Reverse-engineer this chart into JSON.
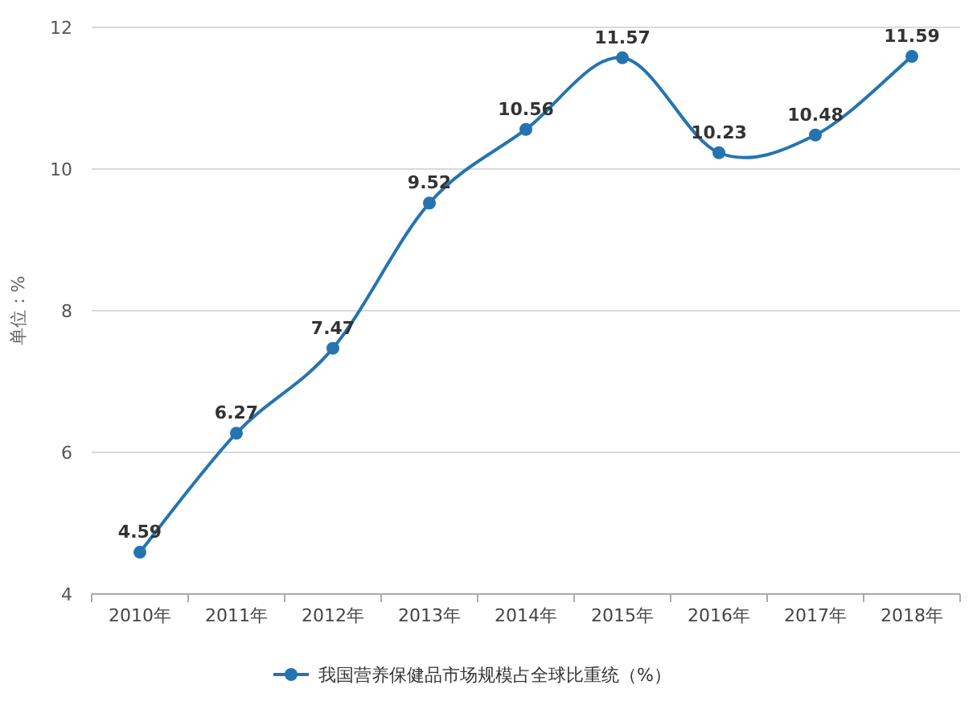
{
  "chart_data": {
    "type": "line",
    "ylabel": "单位：%",
    "categories": [
      "2010年",
      "2011年",
      "2012年",
      "2013年",
      "2014年",
      "2015年",
      "2016年",
      "2017年",
      "2018年"
    ],
    "series": [
      {
        "name": "我国营养保健品市场规模占全球比重统（%）",
        "color": "#2574b0",
        "values": [
          4.59,
          6.27,
          7.47,
          9.52,
          10.56,
          11.57,
          10.23,
          10.48,
          11.59
        ]
      }
    ],
    "ylim": [
      4,
      12
    ],
    "yticks": [
      4,
      6,
      8,
      10,
      12
    ],
    "grid": "y",
    "legend": "bottom",
    "marker": "circle",
    "data_labels": true
  }
}
